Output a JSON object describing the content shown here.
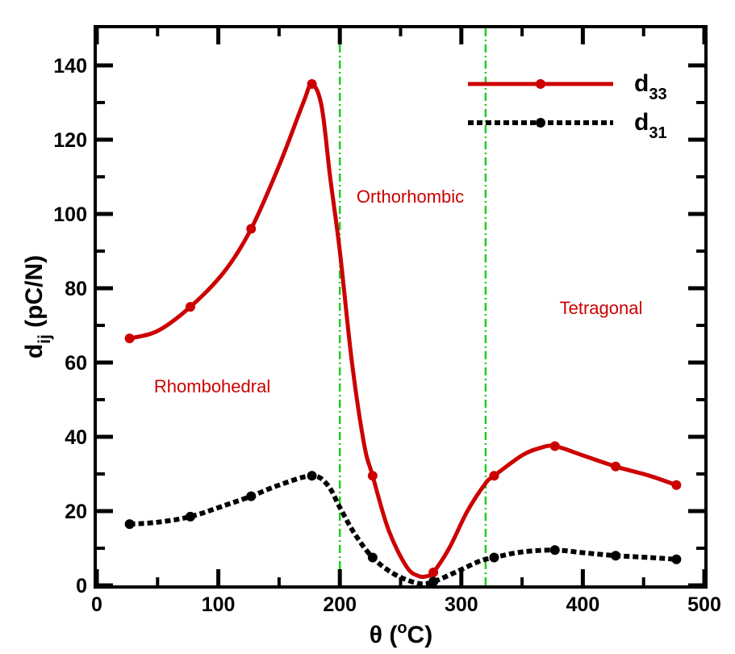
{
  "chart_data": {
    "type": "line",
    "title": "",
    "xlabel": {
      "main": "θ (",
      "sup": "o",
      "unit": "C)"
    },
    "ylabel": {
      "main": "d",
      "sub": "ij",
      "unit": " (pC/N)"
    },
    "xlim": [
      0,
      500
    ],
    "ylim": [
      0,
      150
    ],
    "xticks": [
      0,
      100,
      200,
      300,
      400,
      500
    ],
    "yticks": [
      0,
      20,
      40,
      60,
      80,
      100,
      120,
      140
    ],
    "grid": false,
    "legend_position": "top-right",
    "phase_boundaries": [
      200,
      320
    ],
    "phase_boundary_color": "#22cc22",
    "regions": [
      {
        "label": "Rhombohedral",
        "x": 95,
        "y": 52,
        "color": "#cc0000"
      },
      {
        "label": "Orthorhombic",
        "x": 258,
        "y": 103,
        "color": "#cc0000"
      },
      {
        "label": "Tetragonal",
        "x": 415,
        "y": 73,
        "color": "#cc0000"
      }
    ],
    "series": [
      {
        "name": {
          "main": "d",
          "sub": "33"
        },
        "color": "#cc0000",
        "line_style": "solid",
        "x": [
          27,
          77,
          127,
          177,
          227,
          277,
          327,
          377,
          427,
          477
        ],
        "y": [
          66.5,
          75,
          96,
          135,
          29.5,
          3.5,
          29.5,
          37.5,
          32,
          27
        ],
        "smooth_curve": [
          [
            27,
            66.5
          ],
          [
            50,
            68.5
          ],
          [
            77,
            75
          ],
          [
            105,
            84.5
          ],
          [
            127,
            96
          ],
          [
            150,
            113
          ],
          [
            170,
            130
          ],
          [
            177,
            135
          ],
          [
            185,
            129
          ],
          [
            192,
            110
          ],
          [
            200,
            90
          ],
          [
            210,
            60
          ],
          [
            220,
            38
          ],
          [
            227,
            29.5
          ],
          [
            240,
            15
          ],
          [
            255,
            5
          ],
          [
            265,
            2.5
          ],
          [
            272,
            2.5
          ],
          [
            277,
            3.5
          ],
          [
            290,
            10
          ],
          [
            305,
            20
          ],
          [
            320,
            27.5
          ],
          [
            327,
            29.5
          ],
          [
            350,
            35
          ],
          [
            365,
            37
          ],
          [
            377,
            37.5
          ],
          [
            400,
            35
          ],
          [
            427,
            32
          ],
          [
            455,
            29.5
          ],
          [
            477,
            27
          ]
        ]
      },
      {
        "name": {
          "main": "d",
          "sub": "31"
        },
        "color": "#000000",
        "line_style": "dotted",
        "x": [
          27,
          77,
          127,
          177,
          227,
          277,
          327,
          377,
          427,
          477
        ],
        "y": [
          16.5,
          18.5,
          24,
          29.5,
          7.5,
          1,
          7.5,
          9.5,
          8,
          7
        ],
        "smooth_curve": [
          [
            27,
            16.5
          ],
          [
            50,
            17
          ],
          [
            77,
            18.5
          ],
          [
            105,
            21.5
          ],
          [
            127,
            24
          ],
          [
            150,
            27
          ],
          [
            177,
            29.5
          ],
          [
            190,
            27
          ],
          [
            200,
            21
          ],
          [
            212,
            14
          ],
          [
            227,
            7.5
          ],
          [
            245,
            3
          ],
          [
            265,
            0.5
          ],
          [
            277,
            1
          ],
          [
            295,
            3.5
          ],
          [
            315,
            6.5
          ],
          [
            327,
            7.5
          ],
          [
            350,
            9
          ],
          [
            377,
            9.5
          ],
          [
            400,
            8.8
          ],
          [
            427,
            8
          ],
          [
            455,
            7.5
          ],
          [
            477,
            7
          ]
        ]
      }
    ]
  }
}
